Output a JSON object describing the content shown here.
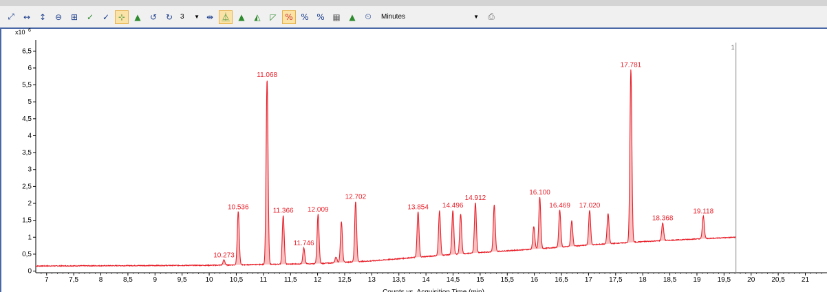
{
  "toolbar": {
    "buttons": [
      {
        "name": "autoscale-xy-icon",
        "glyph": "⤢",
        "tone": ""
      },
      {
        "name": "autoscale-x-icon",
        "glyph": "↔",
        "tone": ""
      },
      {
        "name": "autoscale-y-icon",
        "glyph": "↕",
        "tone": ""
      },
      {
        "name": "zoom-out-icon",
        "glyph": "⊖",
        "tone": ""
      },
      {
        "name": "fit-to-window-icon",
        "glyph": "⊞",
        "tone": ""
      },
      {
        "name": "peak-select-icon",
        "glyph": "✓",
        "tone": "green"
      },
      {
        "name": "integrate-icon",
        "glyph": "✓",
        "tone": ""
      },
      {
        "name": "baseline-icon",
        "glyph": "⊹",
        "tone": "green",
        "active": true
      },
      {
        "name": "peak-shape-icon",
        "glyph": "▲",
        "tone": "green"
      },
      {
        "name": "undo-icon",
        "glyph": "↺",
        "tone": ""
      },
      {
        "name": "redo-icon",
        "glyph": "↻",
        "tone": ""
      }
    ],
    "overlay_count": "3",
    "buttons2": [
      {
        "name": "range-icon",
        "glyph": "⇹",
        "tone": ""
      },
      {
        "name": "peak-label-icon",
        "glyph": "⏅",
        "tone": "green",
        "active": true
      },
      {
        "name": "peak-icon",
        "glyph": "▲",
        "tone": "green"
      },
      {
        "name": "manual-integrate-icon",
        "glyph": "◭",
        "tone": "green"
      },
      {
        "name": "area-icon",
        "glyph": "◸",
        "tone": "green"
      },
      {
        "name": "percent-strike-icon",
        "glyph": "%",
        "tone": "red",
        "active": true
      },
      {
        "name": "percent-icon",
        "glyph": "%",
        "tone": ""
      },
      {
        "name": "percent-fraction-icon",
        "glyph": "%",
        "tone": ""
      },
      {
        "name": "grid-icon",
        "glyph": "▦",
        "tone": "gray"
      },
      {
        "name": "peak-width-icon",
        "glyph": "▲",
        "tone": "green"
      },
      {
        "name": "time-unit-icon",
        "glyph": "⏲",
        "tone": ""
      }
    ],
    "time_unit": "Minutes",
    "print_icon": "printer-icon"
  },
  "chart_data": {
    "type": "line",
    "title": "",
    "xlabel": "Counts vs. Acquisition Time (min)",
    "ylabel": "",
    "y_multiplier_label": "x10",
    "y_multiplier_exp": "6",
    "xlim": [
      6.8,
      21.4
    ],
    "ylim": [
      -0.05,
      6.75
    ],
    "x_ticks": [
      7,
      7.5,
      8,
      8.5,
      9,
      9.5,
      10,
      10.5,
      11,
      11.5,
      12,
      12.5,
      13,
      13.5,
      14,
      14.5,
      15,
      15.5,
      16,
      16.5,
      17,
      17.5,
      18,
      18.5,
      19,
      19.5,
      20,
      20.5,
      21
    ],
    "x_tick_labels": [
      "7",
      "7,5",
      "8",
      "8,5",
      "9",
      "9,5",
      "10",
      "10,5",
      "11",
      "11,5",
      "12",
      "12,5",
      "13",
      "13,5",
      "14",
      "14,5",
      "15",
      "15,5",
      "16",
      "16,5",
      "17",
      "17,5",
      "18",
      "18,5",
      "19",
      "19,5",
      "20",
      "20,5",
      "21"
    ],
    "y_ticks": [
      0,
      0.5,
      1,
      1.5,
      2,
      2.5,
      3,
      3.5,
      4,
      4.5,
      5,
      5.5,
      6,
      6.5
    ],
    "y_tick_labels": [
      "0",
      "0,5",
      "1",
      "1,5",
      "2",
      "2,5",
      "3",
      "3,5",
      "4",
      "4,5",
      "5",
      "5,5",
      "6",
      "6,5"
    ],
    "line_color": "#e8202a",
    "grid": false,
    "trace_end_time": 19.72,
    "cursor_line_time": 19.72,
    "cursor_label": "1",
    "baseline": [
      [
        6.8,
        0.15
      ],
      [
        10,
        0.17
      ],
      [
        12,
        0.22
      ],
      [
        13,
        0.3
      ],
      [
        14,
        0.43
      ],
      [
        15,
        0.55
      ],
      [
        16,
        0.65
      ],
      [
        17,
        0.77
      ],
      [
        18,
        0.87
      ],
      [
        19,
        0.95
      ],
      [
        19.72,
        1.0
      ]
    ],
    "peaks": [
      {
        "time": 10.273,
        "apex": 0.33,
        "label": "10.273"
      },
      {
        "time": 10.536,
        "apex": 1.75,
        "label": "10.536"
      },
      {
        "time": 11.068,
        "apex": 5.65,
        "label": "11.068"
      },
      {
        "time": 11.366,
        "apex": 1.65,
        "label": "11.366"
      },
      {
        "time": 11.746,
        "apex": 0.68,
        "label": "11.746"
      },
      {
        "time": 12.009,
        "apex": 1.68,
        "label": "12.009"
      },
      {
        "time": 12.34,
        "apex": 0.42,
        "label": ""
      },
      {
        "time": 12.44,
        "apex": 1.45,
        "label": ""
      },
      {
        "time": 12.702,
        "apex": 2.05,
        "label": "12.702"
      },
      {
        "time": 13.854,
        "apex": 1.75,
        "label": "13.854"
      },
      {
        "time": 14.25,
        "apex": 1.78,
        "label": ""
      },
      {
        "time": 14.496,
        "apex": 1.8,
        "label": "14.496"
      },
      {
        "time": 14.64,
        "apex": 1.68,
        "label": ""
      },
      {
        "time": 14.912,
        "apex": 2.02,
        "label": "14.912"
      },
      {
        "time": 15.26,
        "apex": 1.95,
        "label": ""
      },
      {
        "time": 15.99,
        "apex": 1.32,
        "label": ""
      },
      {
        "time": 16.1,
        "apex": 2.18,
        "label": "16.100"
      },
      {
        "time": 16.469,
        "apex": 1.8,
        "label": "16.469"
      },
      {
        "time": 16.69,
        "apex": 1.48,
        "label": ""
      },
      {
        "time": 17.02,
        "apex": 1.8,
        "label": "17.020"
      },
      {
        "time": 17.36,
        "apex": 1.7,
        "label": ""
      },
      {
        "time": 17.781,
        "apex": 5.95,
        "label": "17.781"
      },
      {
        "time": 18.368,
        "apex": 1.42,
        "label": "18.368"
      },
      {
        "time": 19.118,
        "apex": 1.62,
        "label": "19.118"
      }
    ]
  }
}
